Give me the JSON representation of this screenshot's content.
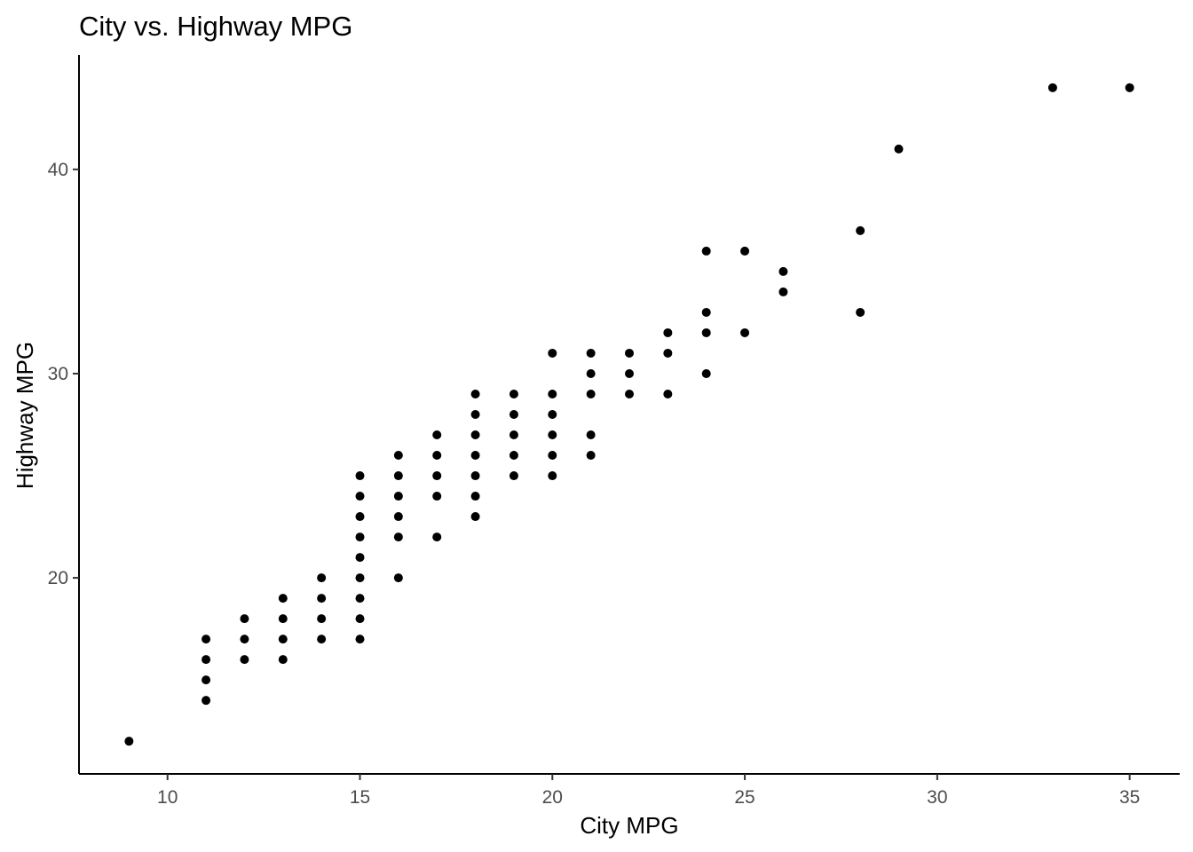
{
  "chart_data": {
    "type": "scatter",
    "title": "City vs. Highway MPG",
    "xlabel": "City MPG",
    "ylabel": "Highway MPG",
    "xlim": [
      7.7,
      36.3
    ],
    "ylim": [
      10.4,
      45.6
    ],
    "x_ticks": [
      10,
      15,
      20,
      25,
      30,
      35
    ],
    "y_ticks": [
      20,
      30,
      40
    ],
    "grid": false,
    "legend": "none",
    "point_color": "#000000",
    "points": [
      {
        "x": 9,
        "y": 12
      },
      {
        "x": 11,
        "y": 14
      },
      {
        "x": 11,
        "y": 15
      },
      {
        "x": 11,
        "y": 16
      },
      {
        "x": 11,
        "y": 17
      },
      {
        "x": 12,
        "y": 16
      },
      {
        "x": 12,
        "y": 17
      },
      {
        "x": 12,
        "y": 18
      },
      {
        "x": 13,
        "y": 16
      },
      {
        "x": 13,
        "y": 17
      },
      {
        "x": 13,
        "y": 18
      },
      {
        "x": 13,
        "y": 19
      },
      {
        "x": 14,
        "y": 17
      },
      {
        "x": 14,
        "y": 18
      },
      {
        "x": 14,
        "y": 19
      },
      {
        "x": 14,
        "y": 20
      },
      {
        "x": 15,
        "y": 17
      },
      {
        "x": 15,
        "y": 18
      },
      {
        "x": 15,
        "y": 19
      },
      {
        "x": 15,
        "y": 20
      },
      {
        "x": 15,
        "y": 21
      },
      {
        "x": 15,
        "y": 22
      },
      {
        "x": 15,
        "y": 23
      },
      {
        "x": 15,
        "y": 24
      },
      {
        "x": 15,
        "y": 25
      },
      {
        "x": 16,
        "y": 20
      },
      {
        "x": 16,
        "y": 22
      },
      {
        "x": 16,
        "y": 23
      },
      {
        "x": 16,
        "y": 24
      },
      {
        "x": 16,
        "y": 25
      },
      {
        "x": 16,
        "y": 26
      },
      {
        "x": 17,
        "y": 22
      },
      {
        "x": 17,
        "y": 24
      },
      {
        "x": 17,
        "y": 25
      },
      {
        "x": 17,
        "y": 26
      },
      {
        "x": 17,
        "y": 27
      },
      {
        "x": 18,
        "y": 23
      },
      {
        "x": 18,
        "y": 24
      },
      {
        "x": 18,
        "y": 25
      },
      {
        "x": 18,
        "y": 26
      },
      {
        "x": 18,
        "y": 27
      },
      {
        "x": 18,
        "y": 28
      },
      {
        "x": 18,
        "y": 29
      },
      {
        "x": 19,
        "y": 25
      },
      {
        "x": 19,
        "y": 26
      },
      {
        "x": 19,
        "y": 27
      },
      {
        "x": 19,
        "y": 28
      },
      {
        "x": 19,
        "y": 29
      },
      {
        "x": 20,
        "y": 25
      },
      {
        "x": 20,
        "y": 26
      },
      {
        "x": 20,
        "y": 27
      },
      {
        "x": 20,
        "y": 28
      },
      {
        "x": 20,
        "y": 29
      },
      {
        "x": 20,
        "y": 31
      },
      {
        "x": 21,
        "y": 26
      },
      {
        "x": 21,
        "y": 27
      },
      {
        "x": 21,
        "y": 29
      },
      {
        "x": 21,
        "y": 30
      },
      {
        "x": 21,
        "y": 31
      },
      {
        "x": 22,
        "y": 29
      },
      {
        "x": 22,
        "y": 30
      },
      {
        "x": 22,
        "y": 31
      },
      {
        "x": 23,
        "y": 29
      },
      {
        "x": 23,
        "y": 31
      },
      {
        "x": 23,
        "y": 32
      },
      {
        "x": 24,
        "y": 30
      },
      {
        "x": 24,
        "y": 32
      },
      {
        "x": 24,
        "y": 33
      },
      {
        "x": 24,
        "y": 36
      },
      {
        "x": 25,
        "y": 32
      },
      {
        "x": 25,
        "y": 36
      },
      {
        "x": 26,
        "y": 34
      },
      {
        "x": 26,
        "y": 35
      },
      {
        "x": 28,
        "y": 33
      },
      {
        "x": 28,
        "y": 37
      },
      {
        "x": 29,
        "y": 41
      },
      {
        "x": 33,
        "y": 44
      },
      {
        "x": 35,
        "y": 44
      }
    ]
  }
}
